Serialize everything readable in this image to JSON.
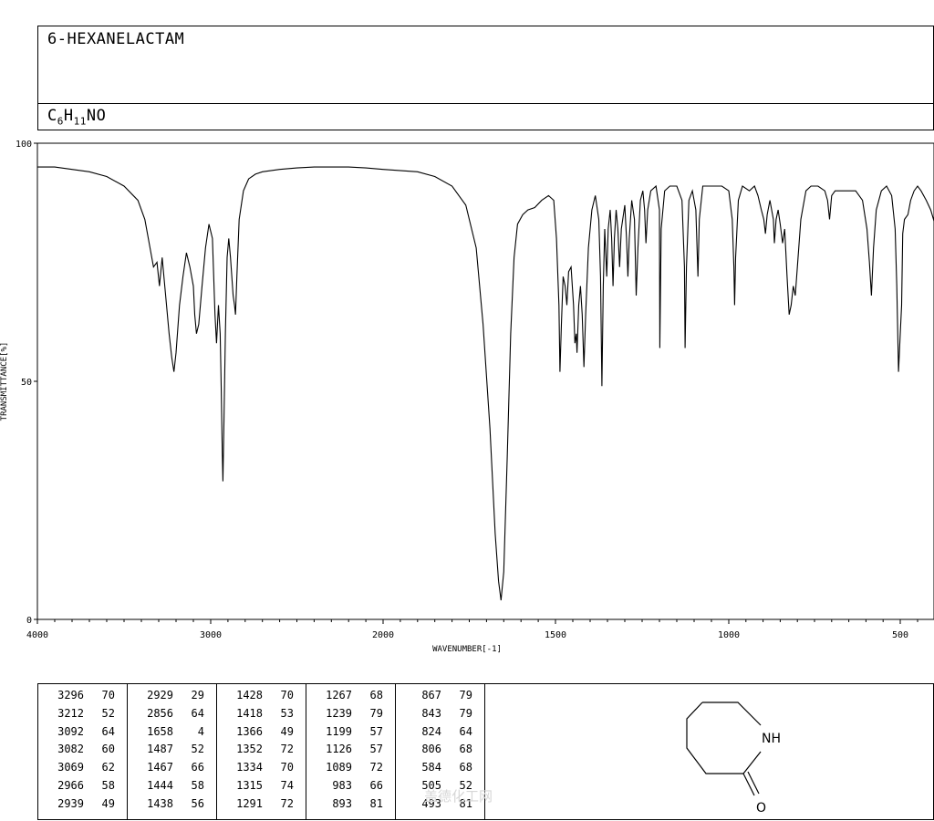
{
  "header": {
    "compound_name": "6-HEXANELACTAM",
    "formula_c": "C",
    "formula_c_count": "6",
    "formula_h": "H",
    "formula_h_count": "11",
    "formula_rest": "NO"
  },
  "chart_data": {
    "type": "line",
    "title": "",
    "xlabel": "WAVENUMBER[-1]",
    "ylabel": "TRANSMITTANCE[%]",
    "xlim": [
      4000,
      400
    ],
    "ylim": [
      0,
      100
    ],
    "x_ticks": [
      4000,
      3000,
      2000,
      1500,
      1000,
      500
    ],
    "y_ticks": [
      0,
      50,
      100
    ],
    "grid": false,
    "line_color": "#000000",
    "baseline": [
      [
        4000,
        95
      ],
      [
        3900,
        95
      ],
      [
        3800,
        94.5
      ],
      [
        3700,
        94
      ],
      [
        3600,
        93
      ],
      [
        3500,
        91
      ],
      [
        3420,
        88
      ],
      [
        3380,
        84
      ],
      [
        3350,
        78
      ],
      [
        3330,
        74
      ],
      [
        3310,
        75
      ],
      [
        3296,
        70
      ],
      [
        3280,
        76
      ],
      [
        3260,
        68
      ],
      [
        3240,
        60
      ],
      [
        3225,
        55
      ],
      [
        3212,
        52
      ],
      [
        3200,
        56
      ],
      [
        3180,
        66
      ],
      [
        3160,
        72
      ],
      [
        3140,
        77
      ],
      [
        3120,
        74
      ],
      [
        3100,
        70
      ],
      [
        3092,
        64
      ],
      [
        3082,
        60
      ],
      [
        3069,
        62
      ],
      [
        3050,
        70
      ],
      [
        3030,
        78
      ],
      [
        3010,
        83
      ],
      [
        2990,
        80
      ],
      [
        2975,
        64
      ],
      [
        2966,
        58
      ],
      [
        2955,
        66
      ],
      [
        2945,
        60
      ],
      [
        2939,
        49
      ],
      [
        2933,
        35
      ],
      [
        2929,
        29
      ],
      [
        2924,
        40
      ],
      [
        2915,
        60
      ],
      [
        2905,
        76
      ],
      [
        2895,
        80
      ],
      [
        2885,
        76
      ],
      [
        2870,
        68
      ],
      [
        2862,
        66
      ],
      [
        2856,
        64
      ],
      [
        2848,
        72
      ],
      [
        2835,
        84
      ],
      [
        2810,
        90
      ],
      [
        2780,
        92.5
      ],
      [
        2740,
        93.5
      ],
      [
        2700,
        94
      ],
      [
        2600,
        94.5
      ],
      [
        2500,
        94.8
      ],
      [
        2400,
        95
      ],
      [
        2300,
        95
      ],
      [
        2200,
        95
      ],
      [
        2100,
        94.8
      ],
      [
        2000,
        94.5
      ],
      [
        1900,
        94
      ],
      [
        1850,
        93
      ],
      [
        1800,
        91
      ],
      [
        1760,
        87
      ],
      [
        1730,
        78
      ],
      [
        1710,
        62
      ],
      [
        1690,
        40
      ],
      [
        1675,
        18
      ],
      [
        1665,
        8
      ],
      [
        1658,
        4
      ],
      [
        1650,
        10
      ],
      [
        1640,
        34
      ],
      [
        1630,
        60
      ],
      [
        1620,
        76
      ],
      [
        1610,
        83
      ],
      [
        1595,
        85
      ],
      [
        1580,
        86
      ],
      [
        1560,
        86.5
      ],
      [
        1540,
        88
      ],
      [
        1520,
        89
      ],
      [
        1505,
        88
      ],
      [
        1497,
        80
      ],
      [
        1490,
        66
      ],
      [
        1487,
        52
      ],
      [
        1483,
        62
      ],
      [
        1478,
        72
      ],
      [
        1472,
        70
      ],
      [
        1467,
        66
      ],
      [
        1462,
        73
      ],
      [
        1455,
        74
      ],
      [
        1448,
        66
      ],
      [
        1444,
        58
      ],
      [
        1440,
        60
      ],
      [
        1438,
        56
      ],
      [
        1433,
        66
      ],
      [
        1428,
        70
      ],
      [
        1423,
        64
      ],
      [
        1418,
        53
      ],
      [
        1413,
        64
      ],
      [
        1405,
        78
      ],
      [
        1395,
        86
      ],
      [
        1385,
        89
      ],
      [
        1375,
        84
      ],
      [
        1370,
        72
      ],
      [
        1366,
        49
      ],
      [
        1362,
        70
      ],
      [
        1358,
        82
      ],
      [
        1352,
        72
      ],
      [
        1348,
        82
      ],
      [
        1342,
        86
      ],
      [
        1338,
        80
      ],
      [
        1334,
        70
      ],
      [
        1330,
        80
      ],
      [
        1325,
        86
      ],
      [
        1320,
        82
      ],
      [
        1315,
        74
      ],
      [
        1310,
        82
      ],
      [
        1300,
        87
      ],
      [
        1295,
        80
      ],
      [
        1291,
        72
      ],
      [
        1287,
        80
      ],
      [
        1280,
        88
      ],
      [
        1272,
        84
      ],
      [
        1267,
        68
      ],
      [
        1262,
        78
      ],
      [
        1255,
        88
      ],
      [
        1248,
        90
      ],
      [
        1243,
        86
      ],
      [
        1239,
        79
      ],
      [
        1234,
        86
      ],
      [
        1225,
        90
      ],
      [
        1210,
        91
      ],
      [
        1200,
        86
      ],
      [
        1199,
        57
      ],
      [
        1195,
        82
      ],
      [
        1185,
        90
      ],
      [
        1170,
        91
      ],
      [
        1150,
        91
      ],
      [
        1135,
        88
      ],
      [
        1128,
        74
      ],
      [
        1126,
        57
      ],
      [
        1122,
        74
      ],
      [
        1115,
        88
      ],
      [
        1105,
        90
      ],
      [
        1095,
        86
      ],
      [
        1089,
        72
      ],
      [
        1085,
        84
      ],
      [
        1075,
        91
      ],
      [
        1050,
        91
      ],
      [
        1020,
        91
      ],
      [
        1000,
        90
      ],
      [
        990,
        84
      ],
      [
        985,
        74
      ],
      [
        983,
        66
      ],
      [
        980,
        76
      ],
      [
        972,
        88
      ],
      [
        960,
        91
      ],
      [
        940,
        90
      ],
      [
        925,
        91
      ],
      [
        915,
        89
      ],
      [
        905,
        86
      ],
      [
        898,
        84
      ],
      [
        893,
        81
      ],
      [
        888,
        85
      ],
      [
        880,
        88
      ],
      [
        870,
        84
      ],
      [
        867,
        79
      ],
      [
        862,
        84
      ],
      [
        856,
        86
      ],
      [
        850,
        83
      ],
      [
        843,
        79
      ],
      [
        837,
        82
      ],
      [
        830,
        72
      ],
      [
        824,
        64
      ],
      [
        818,
        66
      ],
      [
        812,
        70
      ],
      [
        806,
        68
      ],
      [
        800,
        74
      ],
      [
        790,
        84
      ],
      [
        775,
        90
      ],
      [
        760,
        91
      ],
      [
        740,
        91
      ],
      [
        720,
        90
      ],
      [
        712,
        88
      ],
      [
        706,
        84
      ],
      [
        700,
        89
      ],
      [
        690,
        90
      ],
      [
        670,
        90
      ],
      [
        650,
        90
      ],
      [
        630,
        90
      ],
      [
        610,
        88
      ],
      [
        597,
        82
      ],
      [
        590,
        75
      ],
      [
        584,
        68
      ],
      [
        578,
        78
      ],
      [
        570,
        86
      ],
      [
        555,
        90
      ],
      [
        540,
        91
      ],
      [
        525,
        89
      ],
      [
        515,
        82
      ],
      [
        510,
        70
      ],
      [
        505,
        52
      ],
      [
        500,
        60
      ],
      [
        496,
        66
      ],
      [
        493,
        81
      ],
      [
        488,
        84
      ],
      [
        478,
        85
      ],
      [
        470,
        88
      ],
      [
        460,
        90
      ],
      [
        450,
        91
      ],
      [
        440,
        90
      ],
      [
        425,
        88
      ],
      [
        412,
        86
      ],
      [
        400,
        83
      ]
    ],
    "peaks": [
      {
        "x": 3296,
        "y": 70
      },
      {
        "x": 3212,
        "y": 52
      },
      {
        "x": 3092,
        "y": 64
      },
      {
        "x": 3082,
        "y": 60
      },
      {
        "x": 3069,
        "y": 62
      },
      {
        "x": 2966,
        "y": 58
      },
      {
        "x": 2939,
        "y": 49
      },
      {
        "x": 2929,
        "y": 29
      },
      {
        "x": 2856,
        "y": 64
      },
      {
        "x": 1658,
        "y": 4
      },
      {
        "x": 1487,
        "y": 52
      },
      {
        "x": 1467,
        "y": 66
      },
      {
        "x": 1444,
        "y": 58
      },
      {
        "x": 1438,
        "y": 56
      },
      {
        "x": 1428,
        "y": 70
      },
      {
        "x": 1418,
        "y": 53
      },
      {
        "x": 1366,
        "y": 49
      },
      {
        "x": 1352,
        "y": 72
      },
      {
        "x": 1334,
        "y": 70
      },
      {
        "x": 1315,
        "y": 74
      },
      {
        "x": 1291,
        "y": 72
      },
      {
        "x": 1267,
        "y": 68
      },
      {
        "x": 1239,
        "y": 79
      },
      {
        "x": 1199,
        "y": 57
      },
      {
        "x": 1126,
        "y": 57
      },
      {
        "x": 1089,
        "y": 72
      },
      {
        "x": 983,
        "y": 66
      },
      {
        "x": 893,
        "y": 81
      },
      {
        "x": 867,
        "y": 79
      },
      {
        "x": 843,
        "y": 79
      },
      {
        "x": 824,
        "y": 64
      },
      {
        "x": 806,
        "y": 68
      },
      {
        "x": 584,
        "y": 68
      },
      {
        "x": 505,
        "y": 52
      },
      {
        "x": 493,
        "y": 81
      }
    ]
  },
  "peak_table": {
    "columns": [
      [
        [
          "3296",
          "70"
        ],
        [
          "3212",
          "52"
        ],
        [
          "3092",
          "64"
        ],
        [
          "3082",
          "60"
        ],
        [
          "3069",
          "62"
        ],
        [
          "2966",
          "58"
        ],
        [
          "2939",
          "49"
        ]
      ],
      [
        [
          "2929",
          "29"
        ],
        [
          "2856",
          "64"
        ],
        [
          "1658",
          "4"
        ],
        [
          "1487",
          "52"
        ],
        [
          "1467",
          "66"
        ],
        [
          "1444",
          "58"
        ],
        [
          "1438",
          "56"
        ]
      ],
      [
        [
          "1428",
          "70"
        ],
        [
          "1418",
          "53"
        ],
        [
          "1366",
          "49"
        ],
        [
          "1352",
          "72"
        ],
        [
          "1334",
          "70"
        ],
        [
          "1315",
          "74"
        ],
        [
          "1291",
          "72"
        ]
      ],
      [
        [
          "1267",
          "68"
        ],
        [
          "1239",
          "79"
        ],
        [
          "1199",
          "57"
        ],
        [
          "1126",
          "57"
        ],
        [
          "1089",
          "72"
        ],
        [
          "983",
          "66"
        ],
        [
          "893",
          "81"
        ]
      ],
      [
        [
          "867",
          "79"
        ],
        [
          "843",
          "79"
        ],
        [
          "824",
          "64"
        ],
        [
          "806",
          "68"
        ],
        [
          "584",
          "68"
        ],
        [
          "505",
          "52"
        ],
        [
          "493",
          "81"
        ]
      ]
    ]
  },
  "structure": {
    "nh_label": "NH",
    "o_label": "O"
  },
  "watermark": "盖德化工网"
}
